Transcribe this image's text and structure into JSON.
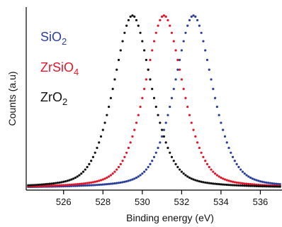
{
  "chart_data": {
    "type": "scatter",
    "xlabel": "Binding energy (eV)",
    "ylabel": "Counts (a.u)",
    "xlim": [
      524.1,
      537.1
    ],
    "ylim": [
      0,
      1.04
    ],
    "xticks": [
      526,
      528,
      530,
      532,
      534,
      536
    ],
    "grid": false,
    "legend_position": "top-left",
    "series": [
      {
        "name": "SiO",
        "sub": "2",
        "color": "#2a3f9a",
        "center": 532.6,
        "baseline": 0.012,
        "points": [
          [
            529.3,
            0.02
          ],
          [
            529.6,
            0.03
          ],
          [
            530.0,
            0.05
          ],
          [
            530.4,
            0.09
          ],
          [
            530.8,
            0.17
          ],
          [
            531.2,
            0.32
          ],
          [
            531.6,
            0.55
          ],
          [
            532.0,
            0.8
          ],
          [
            532.4,
            0.97
          ],
          [
            532.6,
            1.0
          ],
          [
            532.8,
            0.97
          ],
          [
            533.2,
            0.8
          ],
          [
            533.6,
            0.55
          ],
          [
            534.0,
            0.34
          ],
          [
            534.4,
            0.2
          ],
          [
            534.8,
            0.12
          ],
          [
            535.2,
            0.08
          ],
          [
            535.6,
            0.05
          ],
          [
            536.0,
            0.03
          ],
          [
            536.5,
            0.02
          ]
        ]
      },
      {
        "name": "ZrSiO",
        "sub": "4",
        "color": "#e0162b",
        "center": 531.1,
        "baseline": 0.012,
        "points": [
          [
            527.6,
            0.02
          ],
          [
            528.0,
            0.03
          ],
          [
            528.5,
            0.05
          ],
          [
            528.9,
            0.09
          ],
          [
            529.3,
            0.17
          ],
          [
            529.7,
            0.32
          ],
          [
            530.1,
            0.55
          ],
          [
            530.5,
            0.8
          ],
          [
            530.9,
            0.97
          ],
          [
            531.1,
            1.0
          ],
          [
            531.3,
            0.97
          ],
          [
            531.7,
            0.8
          ],
          [
            532.1,
            0.55
          ],
          [
            532.5,
            0.34
          ],
          [
            532.9,
            0.2
          ],
          [
            533.3,
            0.12
          ],
          [
            533.7,
            0.08
          ],
          [
            534.1,
            0.05
          ],
          [
            534.6,
            0.03
          ],
          [
            535.2,
            0.02
          ]
        ]
      },
      {
        "name": "ZrO",
        "sub": "2",
        "color": "#111111",
        "center": 529.5,
        "baseline": 0.012,
        "points": [
          [
            525.5,
            0.02
          ],
          [
            526.0,
            0.03
          ],
          [
            526.5,
            0.05
          ],
          [
            526.9,
            0.09
          ],
          [
            527.3,
            0.17
          ],
          [
            527.7,
            0.32
          ],
          [
            528.1,
            0.55
          ],
          [
            528.6,
            0.8
          ],
          [
            529.2,
            0.97
          ],
          [
            529.5,
            1.0
          ],
          [
            529.8,
            0.97
          ],
          [
            530.3,
            0.8
          ],
          [
            530.8,
            0.55
          ],
          [
            531.2,
            0.34
          ],
          [
            531.6,
            0.2
          ],
          [
            532.0,
            0.12
          ],
          [
            532.5,
            0.08
          ],
          [
            533.0,
            0.05
          ],
          [
            533.6,
            0.03
          ],
          [
            534.4,
            0.02
          ]
        ]
      }
    ]
  }
}
